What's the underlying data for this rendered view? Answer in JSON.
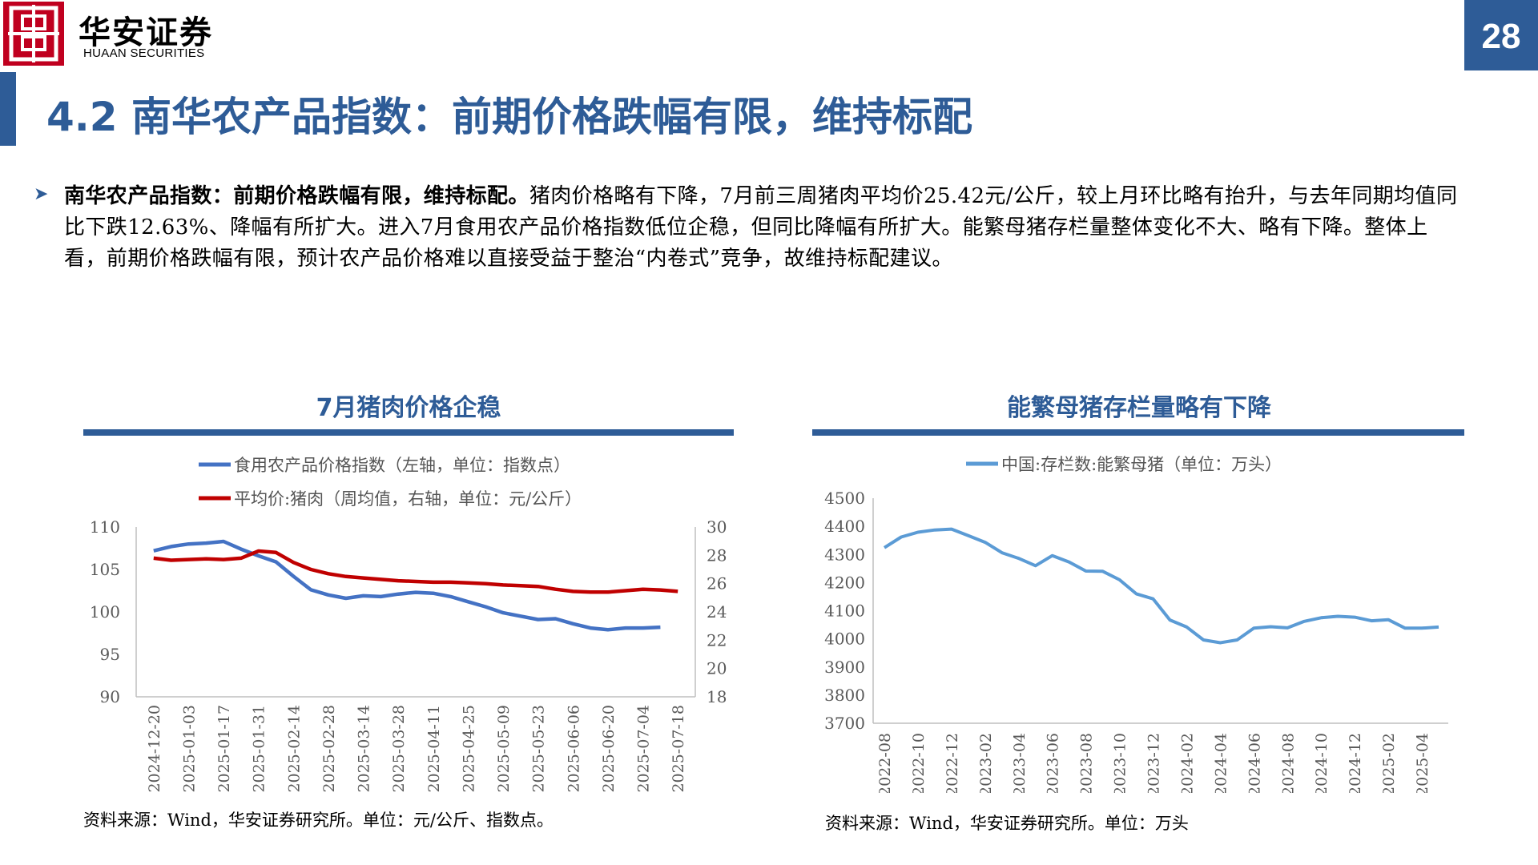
{
  "header": {
    "logo_cn": "华安证券",
    "logo_en": "HUAAN SECURITIES",
    "page_number": "28"
  },
  "slide": {
    "title": "4.2 南华农产品指数：前期价格跌幅有限，维持标配",
    "bullet_bold": "南华农产品指数：前期价格跌幅有限，维持标配。",
    "bullet_text": "猪肉价格略有下降，7月前三周猪肉平均价25.42元/公斤，较上月环比略有抬升，与去年同期均值同比下跌12.63%、降幅有所扩大。进入7月食用农产品价格指数低位企稳，但同比降幅有所扩大。能繁母猪存栏量整体变化不大、略有下降。整体上看，前期价格跌幅有限，预计农产品价格难以直接受益于整治“内卷式”竞争，故维持标配建议。"
  },
  "colors": {
    "brand_blue": "#2e5c97",
    "logo_red": "#c0001f",
    "series_blue": "#4472c4",
    "series_red": "#c00000",
    "series_lightblue": "#5b9bd5"
  },
  "chart_data": [
    {
      "type": "line",
      "title": "7月猪肉价格企稳",
      "source": "资料来源：Wind，华安证券研究所。单位：元/公斤、指数点。",
      "x_ticks": [
        "2024-12-20",
        "2025-01-03",
        "2025-01-17",
        "2025-01-31",
        "2025-02-14",
        "2025-02-28",
        "2025-03-14",
        "2025-03-28",
        "2025-04-11",
        "2025-04-25",
        "2025-05-09",
        "2025-05-23",
        "2025-06-06",
        "2025-06-20",
        "2025-07-04",
        "2025-07-18"
      ],
      "y_left": {
        "ticks": [
          "110",
          "105",
          "100",
          "95",
          "90"
        ],
        "range": [
          90,
          110
        ]
      },
      "y_right": {
        "ticks": [
          "30",
          "28",
          "26",
          "24",
          "22",
          "20",
          "18"
        ],
        "range": [
          18,
          30
        ]
      },
      "legend": "top",
      "series": [
        {
          "name": "食用农产品价格指数（左轴，单位：指数点）",
          "axis": "left",
          "color": "#4472c4",
          "x": [
            0,
            0.5,
            1,
            1.5,
            2,
            2.5,
            3,
            3.5,
            4,
            4.5,
            5,
            5.5,
            6,
            6.5,
            7,
            7.5,
            8,
            8.5,
            9,
            9.5,
            10,
            10.5,
            11,
            11.5,
            12,
            12.5,
            13,
            13.5,
            14,
            14.5
          ],
          "values": [
            107.2,
            107.7,
            108.0,
            108.1,
            108.3,
            107.4,
            106.6,
            105.9,
            104.2,
            102.6,
            102.0,
            101.6,
            101.9,
            101.8,
            102.1,
            102.3,
            102.2,
            101.8,
            101.2,
            100.6,
            99.9,
            99.5,
            99.1,
            99.2,
            98.6,
            98.1,
            97.9,
            98.1,
            98.1,
            98.2
          ]
        },
        {
          "name": "平均价:猪肉（周均值，右轴，单位：元/公斤）",
          "axis": "right",
          "color": "#c00000",
          "x": [
            0,
            0.5,
            1,
            1.5,
            2,
            2.5,
            3,
            3.5,
            4,
            4.5,
            5,
            5.5,
            6,
            6.5,
            7,
            7.5,
            8,
            8.5,
            9,
            9.5,
            10,
            10.5,
            11,
            11.5,
            12,
            12.5,
            13,
            13.5,
            14,
            14.5,
            15
          ],
          "values": [
            27.8,
            27.65,
            27.7,
            27.75,
            27.7,
            27.8,
            28.3,
            28.2,
            27.5,
            27.0,
            26.7,
            26.5,
            26.4,
            26.3,
            26.2,
            26.15,
            26.1,
            26.1,
            26.05,
            26.0,
            25.9,
            25.85,
            25.8,
            25.6,
            25.45,
            25.4,
            25.4,
            25.5,
            25.6,
            25.55,
            25.45
          ]
        }
      ]
    },
    {
      "type": "line",
      "title": "能繁母猪存栏量略有下降",
      "source": "资料来源：Wind，华安证券研究所。单位：万头",
      "x_ticks": [
        "2022-08",
        "2022-10",
        "2022-12",
        "2023-02",
        "2023-04",
        "2023-06",
        "2023-08",
        "2023-10",
        "2023-12",
        "2024-02",
        "2024-04",
        "2024-06",
        "2024-08",
        "2024-10",
        "2024-12",
        "2025-02",
        "2025-04"
      ],
      "y": {
        "ticks": [
          "4500",
          "4400",
          "4300",
          "4200",
          "4100",
          "4000",
          "3900",
          "3800",
          "3700"
        ],
        "range": [
          3700,
          4500
        ]
      },
      "legend": "top",
      "series": [
        {
          "name": "中国:存栏数:能繁母猪（单位：万头）",
          "color": "#5b9bd5",
          "values": [
            4324,
            4362,
            4379,
            4387,
            4390,
            4367,
            4343,
            4306,
            4286,
            4260,
            4296,
            4273,
            4241,
            4240,
            4210,
            4160,
            4142,
            4067,
            4042,
            3996,
            3986,
            3996,
            4038,
            4043,
            4039,
            4062,
            4075,
            4080,
            4077,
            4064,
            4068,
            4038,
            4038,
            4042
          ]
        }
      ]
    }
  ]
}
